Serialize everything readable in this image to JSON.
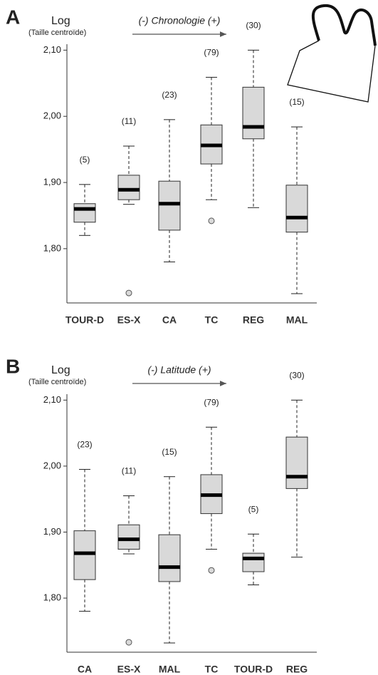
{
  "chart_data": [
    {
      "type": "box",
      "panel": "A",
      "ylabel": "Log",
      "ylabel_sub": "(Taille centroïde)",
      "annotation": "(-) Chronologie (+)",
      "categories": [
        "TOUR-D",
        "ES-X",
        "CA",
        "TC",
        "REG",
        "MAL"
      ],
      "sample_sizes": [
        "(5)",
        "(11)",
        "(23)",
        "(79)",
        "(30)",
        "(15)"
      ],
      "boxes": [
        {
          "min": 1.82,
          "q1": 1.84,
          "median": 1.86,
          "q3": 1.868,
          "max": 1.897,
          "outliers": []
        },
        {
          "min": 1.867,
          "q1": 1.874,
          "median": 1.889,
          "q3": 1.911,
          "max": 1.955,
          "outliers": [
            1.733
          ]
        },
        {
          "min": 1.78,
          "q1": 1.828,
          "median": 1.868,
          "q3": 1.902,
          "max": 1.995,
          "outliers": []
        },
        {
          "min": 1.874,
          "q1": 1.928,
          "median": 1.956,
          "q3": 1.987,
          "max": 2.059,
          "outliers": [
            1.842
          ]
        },
        {
          "min": 1.862,
          "q1": 1.966,
          "median": 1.984,
          "q3": 2.044,
          "max": 2.1,
          "outliers": []
        },
        {
          "min": 1.732,
          "q1": 1.825,
          "median": 1.847,
          "q3": 1.896,
          "max": 1.984,
          "outliers": []
        }
      ],
      "ylim": [
        1.718,
        2.109
      ],
      "yticks": [
        {
          "value": 1.8,
          "label": "1,80"
        },
        {
          "value": 1.9,
          "label": "1,90"
        },
        {
          "value": 2.0,
          "label": "2,00"
        },
        {
          "value": 2.1,
          "label": "2,10"
        }
      ],
      "box_color": "#d9d9d9"
    },
    {
      "type": "box",
      "panel": "B",
      "ylabel": "Log",
      "ylabel_sub": "(Taille centroïde)",
      "annotation": "(-) Latitude (+)",
      "categories": [
        "CA",
        "ES-X",
        "MAL",
        "TC",
        "TOUR-D",
        "REG"
      ],
      "sample_sizes": [
        "(23)",
        "(11)",
        "(15)",
        "(79)",
        "(5)",
        "(30)"
      ],
      "boxes": [
        {
          "min": 1.78,
          "q1": 1.828,
          "median": 1.868,
          "q3": 1.902,
          "max": 1.995,
          "outliers": []
        },
        {
          "min": 1.867,
          "q1": 1.874,
          "median": 1.889,
          "q3": 1.911,
          "max": 1.955,
          "outliers": [
            1.733
          ]
        },
        {
          "min": 1.732,
          "q1": 1.825,
          "median": 1.847,
          "q3": 1.896,
          "max": 1.984,
          "outliers": []
        },
        {
          "min": 1.874,
          "q1": 1.928,
          "median": 1.956,
          "q3": 1.987,
          "max": 2.059,
          "outliers": [
            1.842
          ]
        },
        {
          "min": 1.82,
          "q1": 1.84,
          "median": 1.86,
          "q3": 1.868,
          "max": 1.897,
          "outliers": []
        },
        {
          "min": 1.862,
          "q1": 1.966,
          "median": 1.984,
          "q3": 2.044,
          "max": 2.1,
          "outliers": []
        }
      ],
      "ylim": [
        1.718,
        2.109
      ],
      "yticks": [
        {
          "value": 1.8,
          "label": "1,80"
        },
        {
          "value": 1.9,
          "label": "1,90"
        },
        {
          "value": 2.0,
          "label": "2,00"
        },
        {
          "value": 2.1,
          "label": "2,10"
        }
      ],
      "box_color": "#d9d9d9"
    }
  ]
}
